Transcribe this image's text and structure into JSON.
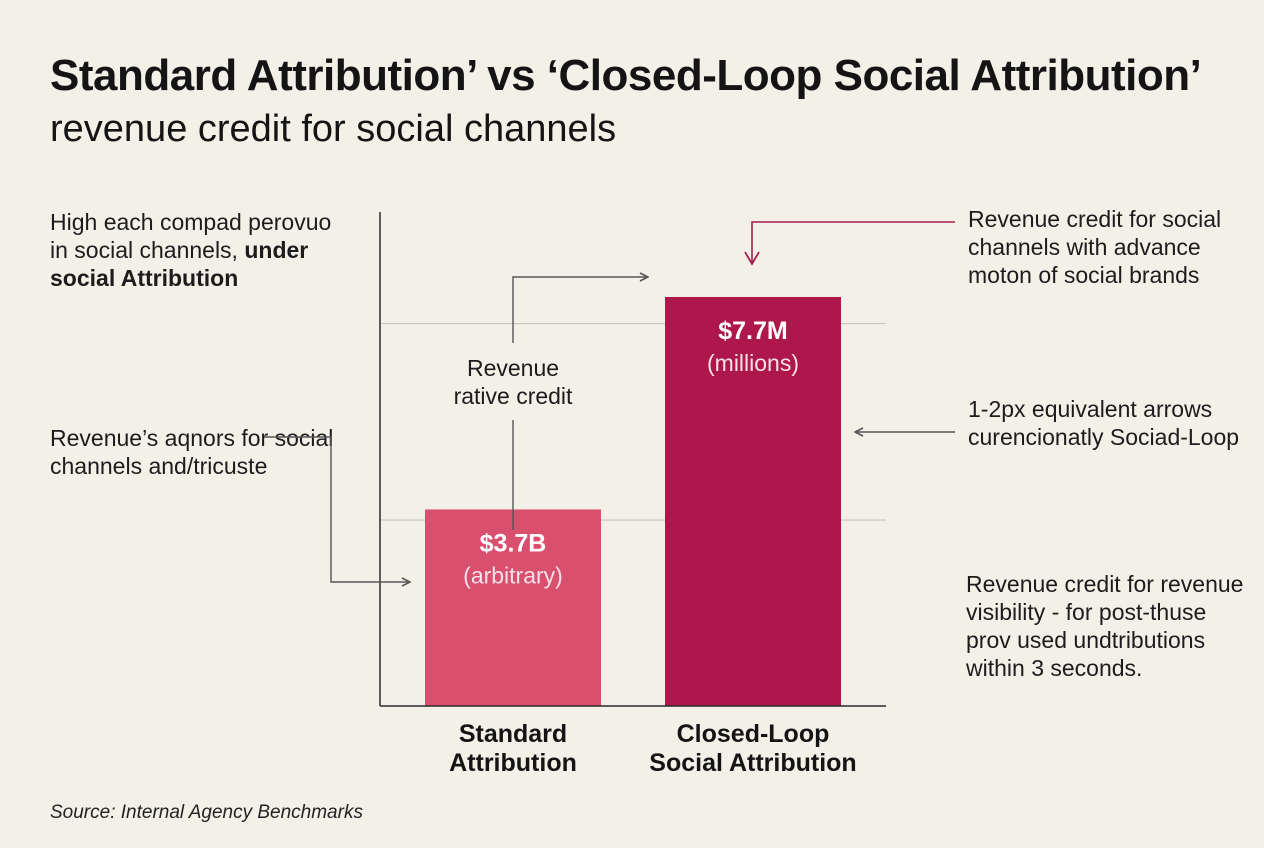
{
  "header": {
    "title": "Standard Attribution’ vs ‘Closed-Loop Social Attribution’",
    "subtitle": "revenue credit for social channels"
  },
  "notes": {
    "left_top_plain": "High each compad perovuo in social channels, ",
    "left_top_bold": "under social Attribution",
    "left_mid": "Revenue’s aqnors for social channels and/tricuste",
    "center": "Revenue rative credit",
    "right_1": "Revenue credit for social channels with advance moton of social brands",
    "right_2": "1-2px equivalent arrows curencionatly Sociad-Loop",
    "right_3": "Revenue credit for revenue visibility - for post-thuse prov used undtributions within 3 seconds."
  },
  "source": "Source: Internal Agency Benchmarks",
  "colors": {
    "standard_bar": "#d94f6e",
    "closed_loop_bar": "#ad174c",
    "axis": "#2a2a2a",
    "gridline": "#c9c5bc",
    "connector": "#555555",
    "accent_arrow": "#a3214e"
  },
  "chart_data": {
    "type": "bar",
    "categories": [
      "Standard Attribution",
      "Closed-Loop Social Attribution"
    ],
    "category_lines": [
      [
        "Standard",
        "Attribution"
      ],
      [
        "Closed-Loop",
        "Social Attribution"
      ]
    ],
    "values": [
      3.7,
      7.7
    ],
    "value_labels": [
      "$3.7B",
      "$7.7M"
    ],
    "unit_labels": [
      "(arbitrary)",
      "(millions)"
    ],
    "ylim": [
      0,
      9.3
    ],
    "gridlines": [
      3.5,
      7.2
    ],
    "title": "",
    "xlabel": "",
    "ylabel": ""
  }
}
